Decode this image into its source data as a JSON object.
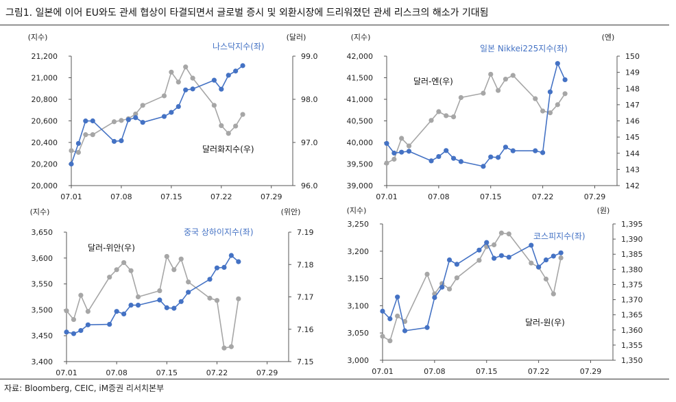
{
  "title": "그림1.  일본에 이어 EU와도 관세 협상이 타결되면서 글로벌 증시 및 외환시장에 드리워졌던 관세 리스크의 해소가 기대됨",
  "source": "자료: Bloomberg, CEIC, iM증권 리서치본부",
  "colors": {
    "left_series": "#4472c4",
    "right_series": "#a6a6a6"
  },
  "chart_data": [
    {
      "type": "line",
      "left_unit": "(지수)",
      "right_unit": "(달러)",
      "xticks": [
        1,
        8,
        15,
        22,
        29
      ],
      "xtick_labels": [
        "07.01",
        "07.08",
        "07.15",
        "07.22",
        "07.29"
      ],
      "xlim": [
        1,
        32
      ],
      "left_ylim": [
        20000,
        21200
      ],
      "left_ticks": [
        20000,
        20200,
        20400,
        20600,
        20800,
        21000,
        21200
      ],
      "left_tick_labels": [
        "20,000",
        "20,200",
        "20,400",
        "20,600",
        "20,800",
        "21,000",
        "21,200"
      ],
      "right_ylim": [
        96,
        99
      ],
      "right_ticks": [
        96,
        97,
        98,
        99
      ],
      "right_tick_labels": [
        "96.0",
        "97.0",
        "98.0",
        "99.0"
      ],
      "series": [
        {
          "name": "나스닥지수(좌)",
          "axis": "left",
          "x": [
            1,
            2,
            3,
            4,
            7,
            8,
            9,
            10,
            11,
            14,
            15,
            16,
            17,
            18,
            21,
            22,
            23,
            24,
            25
          ],
          "values": [
            20200,
            20391,
            20599,
            20600,
            20410,
            20416,
            20611,
            20630,
            20586,
            20641,
            20679,
            20733,
            20887,
            20896,
            20977,
            20894,
            21023,
            21062,
            21112
          ]
        },
        {
          "name": "달러화지수(우)",
          "axis": "right",
          "x": [
            1,
            2,
            3,
            4,
            7,
            8,
            9,
            10,
            11,
            14,
            15,
            16,
            17,
            18,
            21,
            22,
            23,
            24,
            25
          ],
          "values": [
            96.81,
            96.77,
            97.18,
            97.18,
            97.48,
            97.51,
            97.55,
            97.66,
            97.86,
            98.08,
            98.63,
            98.4,
            98.75,
            98.49,
            97.86,
            97.39,
            97.21,
            97.38,
            97.65
          ]
        }
      ]
    },
    {
      "type": "line",
      "left_unit": "(지수)",
      "right_unit": "(엔)",
      "xticks": [
        1,
        8,
        15,
        22,
        29
      ],
      "xtick_labels": [
        "07.01",
        "07.08",
        "07.15",
        "07.22",
        "07.29"
      ],
      "xlim": [
        1,
        32
      ],
      "left_ylim": [
        39000,
        42000
      ],
      "left_ticks": [
        39000,
        39500,
        40000,
        40500,
        41000,
        41500,
        42000
      ],
      "left_tick_labels": [
        "39,000",
        "39,500",
        "40,000",
        "40,500",
        "41,000",
        "41,500",
        "42,000"
      ],
      "right_ylim": [
        142,
        150
      ],
      "right_ticks": [
        142,
        143,
        144,
        145,
        146,
        147,
        148,
        149,
        150
      ],
      "right_tick_labels": [
        "142",
        "143",
        "144",
        "145",
        "146",
        "147",
        "148",
        "149",
        "150"
      ],
      "series": [
        {
          "name": "일본 Nikkei225지수(좌)",
          "axis": "left",
          "x": [
            1,
            2,
            3,
            4,
            7,
            8,
            9,
            10,
            11,
            14,
            15,
            16,
            17,
            18,
            21,
            22,
            23,
            24,
            25
          ],
          "values": [
            39977,
            39754,
            39775,
            39796,
            39573,
            39674,
            39812,
            39632,
            39557,
            39446,
            39664,
            39653,
            39892,
            39807,
            39807,
            39764,
            41172,
            41830,
            41453
          ]
        },
        {
          "name": "달러-엔(우)",
          "axis": "right",
          "x": [
            1,
            2,
            3,
            4,
            7,
            8,
            9,
            10,
            11,
            14,
            15,
            16,
            17,
            18,
            21,
            22,
            23,
            24,
            25
          ],
          "values": [
            143.39,
            143.63,
            144.92,
            144.45,
            146.03,
            146.57,
            146.32,
            146.25,
            147.44,
            147.71,
            148.88,
            147.88,
            148.58,
            148.81,
            147.37,
            146.61,
            146.5,
            147.0,
            147.68
          ]
        }
      ]
    },
    {
      "type": "line",
      "left_unit": "(지수)",
      "right_unit": "(위안)",
      "xticks": [
        1,
        8,
        15,
        22,
        29
      ],
      "xtick_labels": [
        "07.01",
        "07.08",
        "07.15",
        "07.22",
        "07.29"
      ],
      "xlim": [
        1,
        32
      ],
      "left_ylim": [
        3400,
        3650
      ],
      "left_ticks": [
        3400,
        3450,
        3500,
        3550,
        3600,
        3650
      ],
      "left_tick_labels": [
        "3,400",
        "3,450",
        "3,500",
        "3,550",
        "3,600",
        "3,650"
      ],
      "right_ylim": [
        7.15,
        7.19
      ],
      "right_ticks": [
        7.15,
        7.16,
        7.17,
        7.18,
        7.19
      ],
      "right_tick_labels": [
        "7.15",
        "7.16",
        "7.17",
        "7.18",
        "7.19"
      ],
      "series": [
        {
          "name": "중국 상하이지수(좌)",
          "axis": "left",
          "x": [
            1,
            2,
            3,
            4,
            7,
            8,
            9,
            10,
            11,
            14,
            15,
            16,
            17,
            18,
            21,
            22,
            23,
            24,
            25
          ],
          "values": [
            3457,
            3454,
            3460,
            3471,
            3472,
            3497,
            3492,
            3509,
            3509,
            3519,
            3504,
            3503,
            3516,
            3534,
            3559,
            3581,
            3582,
            3605,
            3593
          ]
        },
        {
          "name": "달러-위안(우)",
          "axis": "right",
          "x": [
            1,
            2,
            3,
            4,
            7,
            8,
            9,
            10,
            11,
            14,
            15,
            16,
            17,
            18,
            21,
            22,
            23,
            24,
            25
          ],
          "values": [
            7.1657,
            7.163,
            7.1705,
            7.1655,
            7.1761,
            7.1784,
            7.1806,
            7.1781,
            7.17,
            7.1719,
            7.1825,
            7.1784,
            7.1817,
            7.1746,
            7.1696,
            7.1689,
            7.1542,
            7.1546,
            7.1694
          ]
        }
      ]
    },
    {
      "type": "line",
      "left_unit": "(지수)",
      "right_unit": "(원)",
      "xticks": [
        1,
        8,
        15,
        22,
        29
      ],
      "xtick_labels": [
        "07.01",
        "07.08",
        "07.15",
        "07.22",
        "07.29"
      ],
      "xlim": [
        1,
        32
      ],
      "left_ylim": [
        3000,
        3250
      ],
      "left_ticks": [
        3000,
        3050,
        3100,
        3150,
        3200,
        3250
      ],
      "left_tick_labels": [
        "3,000",
        "3,050",
        "3,100",
        "3,150",
        "3,200",
        "3,250"
      ],
      "right_ylim": [
        1350,
        1395
      ],
      "right_ticks": [
        1350,
        1355,
        1360,
        1365,
        1370,
        1375,
        1380,
        1385,
        1390,
        1395
      ],
      "right_tick_labels": [
        "1,350",
        "1,355",
        "1,360",
        "1,365",
        "1,370",
        "1,375",
        "1,380",
        "1,385",
        "1,390",
        "1,395"
      ],
      "series": [
        {
          "name": "코스피지수(좌)",
          "axis": "left",
          "x": [
            1,
            2,
            3,
            4,
            7,
            8,
            9,
            10,
            11,
            14,
            15,
            16,
            17,
            18,
            21,
            22,
            23,
            24,
            25
          ],
          "values": [
            3090,
            3076,
            3116,
            3054,
            3060,
            3115,
            3134,
            3184,
            3176,
            3202,
            3216,
            3187,
            3192,
            3189,
            3211,
            3171,
            3184,
            3191,
            3197
          ]
        },
        {
          "name": "달러-원(우)",
          "axis": "right",
          "x": [
            1,
            2,
            3,
            4,
            7,
            8,
            9,
            10,
            11,
            14,
            15,
            16,
            17,
            18,
            21,
            22,
            23,
            24,
            25
          ],
          "values": [
            1357.9,
            1356.4,
            1364.6,
            1362.8,
            1378.4,
            1371.9,
            1375.3,
            1373.5,
            1377.2,
            1383.0,
            1387.5,
            1388.1,
            1392.0,
            1391.7,
            1382.1,
            1380.7,
            1376.8,
            1371.9,
            1383.8
          ]
        }
      ]
    }
  ]
}
